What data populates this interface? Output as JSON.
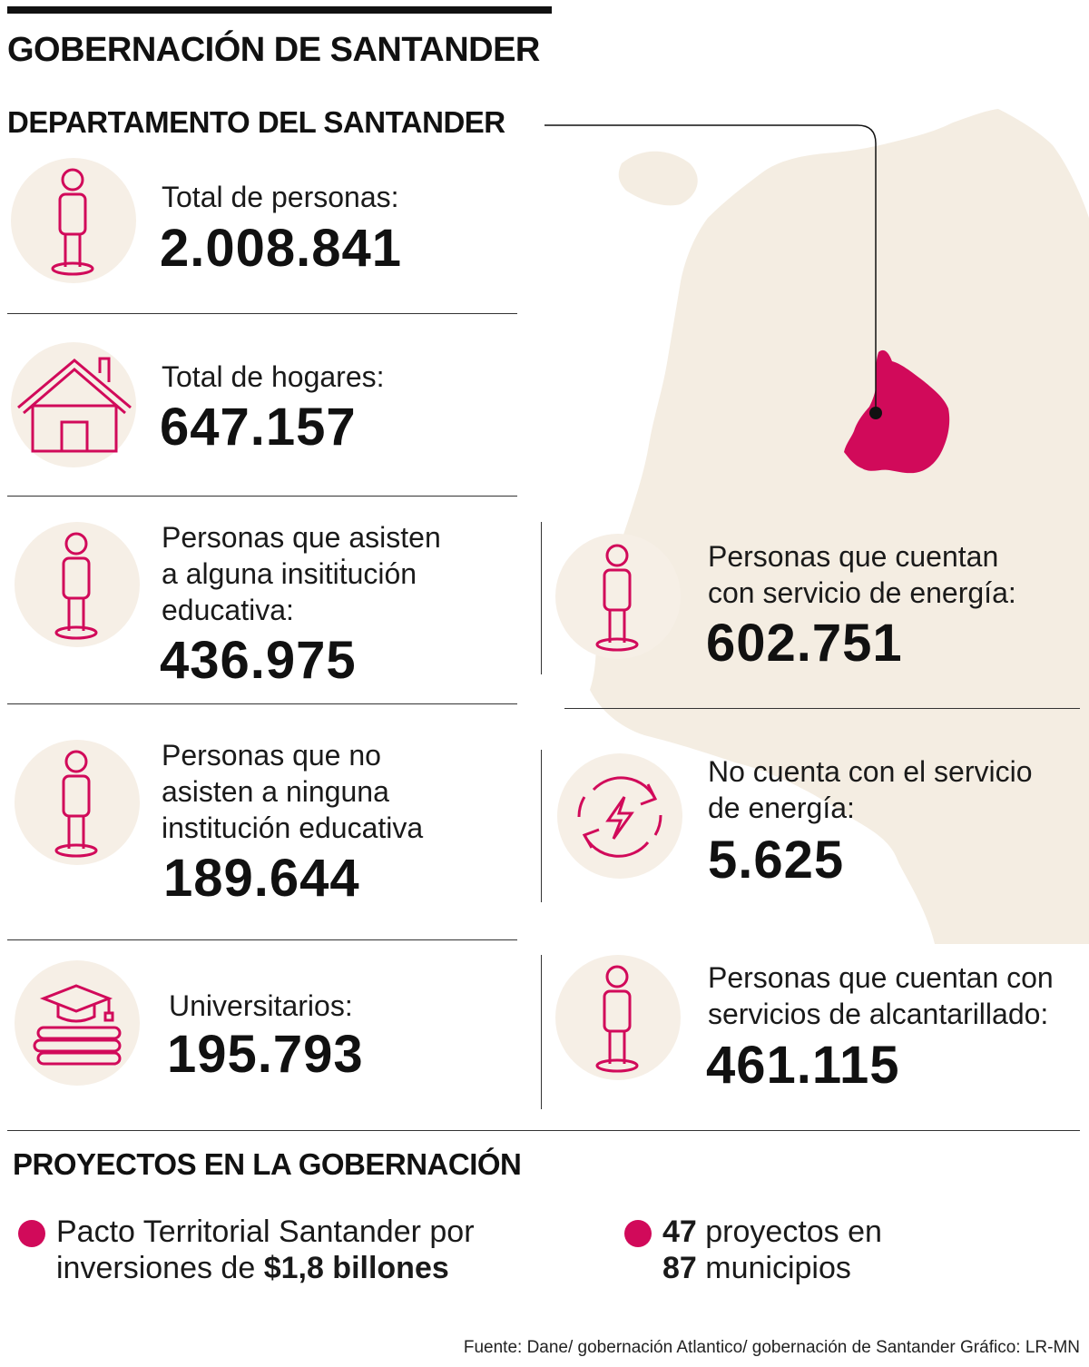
{
  "title": "GOBERNACIÓN DE SANTANDER",
  "subtitle": "DEPARTAMENTO DEL SANTANDER",
  "colors": {
    "accent": "#d10a5a",
    "icon_bg": "#f6efe6",
    "map": "#f4ede2"
  },
  "stats": {
    "personas": {
      "label": "Total de personas:",
      "value": "2.008.841",
      "icon": "person-icon"
    },
    "hogares": {
      "label": "Total de hogares:",
      "value": "647.157",
      "icon": "house-icon"
    },
    "asisten": {
      "label1": "Personas que asisten",
      "label2": "a alguna insitiṫución",
      "label3": "educativa:",
      "value": "436.975",
      "icon": "person-icon"
    },
    "no_asisten": {
      "label1": "Personas que no",
      "label2": "asisten a ninguna",
      "label3": "institución educativa",
      "value": "189.644",
      "icon": "person-icon"
    },
    "universitarios": {
      "label": "Universitarios:",
      "value": "195.793",
      "icon": "graduation-books-icon"
    },
    "energia": {
      "label1": "Personas que cuentan",
      "label2": "con servicio de energía:",
      "value": "602.751",
      "icon": "person-icon"
    },
    "sin_energia": {
      "label1": "No cuenta con el servicio",
      "label2": "de energía:",
      "value": "5.625",
      "icon": "energy-cycle-icon"
    },
    "alcantarillado": {
      "label1": "Personas que cuentan con",
      "label2": "servicios de alcantarillado:",
      "value": "461.115",
      "icon": "person-icon"
    }
  },
  "projects": {
    "title": "PROYECTOS EN LA GOBERNACIÓN",
    "item1": {
      "line1": "Pacto Territorial Santander por",
      "line2_prefix": "inversiones de ",
      "line2_bold": "$1,8 billones"
    },
    "item2": {
      "line1_bold": "47",
      "line1_rest": " proyectos en",
      "line2_bold": "87",
      "line2_rest": " municipios"
    }
  },
  "source": "Fuente: Dane/ gobernación Atlantico/ gobernación de Santander    Gráfico: LR-MN"
}
